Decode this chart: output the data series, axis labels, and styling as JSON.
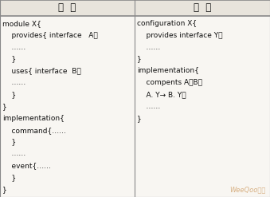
{
  "title_left": "模  块",
  "title_right": "配  件",
  "left_lines": [
    [
      "module X{",
      0
    ],
    [
      "    provides{ interface   A；",
      1
    ],
    [
      "    ……",
      2
    ],
    [
      "    }",
      3
    ],
    [
      "    uses{ interface  B；",
      4
    ],
    [
      "    ……",
      5
    ],
    [
      "    }",
      6
    ],
    [
      "}",
      7
    ],
    [
      "implementation{",
      8
    ],
    [
      "    command{……",
      9
    ],
    [
      "    }",
      10
    ],
    [
      "    ……",
      11
    ],
    [
      "    event{……",
      12
    ],
    [
      "    }",
      13
    ],
    [
      "}",
      14
    ]
  ],
  "right_lines": [
    [
      "configuration X{",
      0
    ],
    [
      "    provides interface Y；",
      1
    ],
    [
      "    ……",
      2
    ],
    [
      "}",
      3
    ],
    [
      "implementation{",
      4
    ],
    [
      "    compents A、B；",
      5
    ],
    [
      "    A. Y→ B. Y；",
      6
    ],
    [
      "    ……",
      7
    ],
    [
      "}",
      8
    ]
  ],
  "bg_color": "#f8f6f2",
  "header_bg": "#e8e4dc",
  "border_color": "#888888",
  "text_color": "#111111",
  "watermark": "WeeQoo维库",
  "watermark_color": "#d4a876",
  "font_size": 6.5,
  "header_font_size": 8.5
}
